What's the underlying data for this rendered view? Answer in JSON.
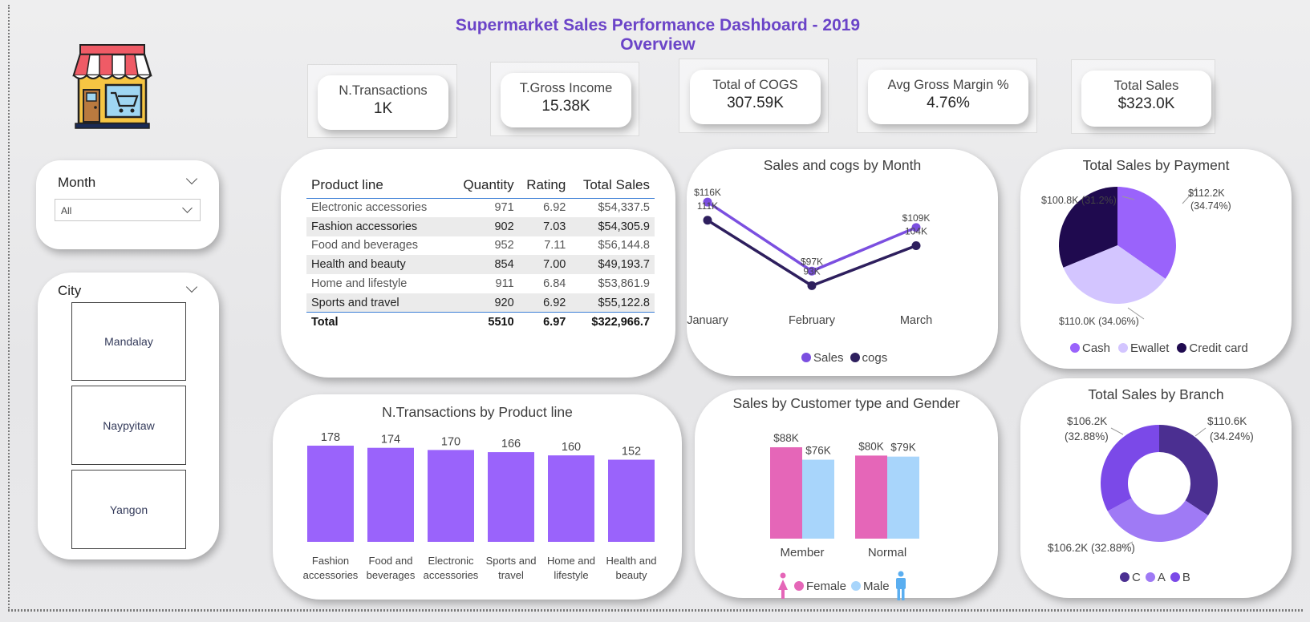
{
  "dashboard": {
    "title": "Supermarket Sales Performance Dashboard - 2019 Overview"
  },
  "logo": {
    "icon": "store-cart-icon"
  },
  "kpis": [
    {
      "label": "N.Transactions",
      "value": "1K"
    },
    {
      "label": "T.Gross Income",
      "value": "15.38K"
    },
    {
      "label": "Total of COGS",
      "value": "307.59K"
    },
    {
      "label": "Avg Gross Margin %",
      "value": "4.76%"
    },
    {
      "label": "Total Sales",
      "value": "$323.0K"
    }
  ],
  "month_slicer": {
    "label": "Month",
    "selected": "All"
  },
  "city_slicer": {
    "label": "City",
    "options": [
      "Mandalay",
      "Naypyitaw",
      "Yangon"
    ]
  },
  "product_table": {
    "headers": [
      "Product line",
      "Quantity",
      "Rating",
      "Total Sales"
    ],
    "rows": [
      [
        "Electronic accessories",
        "971",
        "6.92",
        "$54,337.5"
      ],
      [
        "Fashion accessories",
        "902",
        "7.03",
        "$54,305.9"
      ],
      [
        "Food and beverages",
        "952",
        "7.11",
        "$56,144.8"
      ],
      [
        "Health and beauty",
        "854",
        "7.00",
        "$49,193.7"
      ],
      [
        "Home and lifestyle",
        "911",
        "6.84",
        "$53,861.9"
      ],
      [
        "Sports and travel",
        "920",
        "6.92",
        "$55,122.8"
      ]
    ],
    "total": [
      "Total",
      "5510",
      "6.97",
      "$322,966.7"
    ]
  },
  "colors": {
    "purple": "#9a63fb",
    "purple_dark": "#7b4fe0",
    "navy": "#2e1f5e",
    "pink": "#e566b8",
    "lightblue": "#a8d5fb",
    "lavender": "#d3c5ff",
    "credit": "#1f0a4f",
    "title": "#6b44c8"
  },
  "chart_data": [
    {
      "id": "sales_cogs_month",
      "type": "line",
      "title": "Sales and cogs by Month",
      "categories": [
        "January",
        "February",
        "March"
      ],
      "series": [
        {
          "name": "Sales",
          "values": [
            116,
            97,
            109
          ],
          "labels": [
            "$116K",
            "$97K",
            "$109K"
          ],
          "color": "#7b4fe0"
        },
        {
          "name": "cogs",
          "values": [
            111,
            93,
            104
          ],
          "labels": [
            "111K",
            "93K",
            "104K"
          ],
          "color": "#2e1f5e"
        }
      ],
      "ylim": [
        90,
        118
      ]
    },
    {
      "id": "sales_by_payment",
      "type": "pie",
      "title": "Total Sales by Payment",
      "slices": [
        {
          "name": "Cash",
          "value": 112.2,
          "label": "$112.2K (34.74%)",
          "color": "#9a63fb"
        },
        {
          "name": "Ewallet",
          "value": 110.0,
          "label": "$110.0K (34.06%)",
          "color": "#d3c5ff"
        },
        {
          "name": "Credit card",
          "value": 100.8,
          "label": "$100.8K (31.2%)",
          "color": "#1f0a4f"
        }
      ]
    },
    {
      "id": "transactions_by_product",
      "type": "bar",
      "title": "N.Transactions by Product line",
      "categories": [
        "Fashion accessories",
        "Food and beverages",
        "Electronic accessories",
        "Sports and travel",
        "Home and lifestyle",
        "Health and beauty"
      ],
      "category_lines": [
        [
          "Fashion",
          "accessories"
        ],
        [
          "Food and",
          "beverages"
        ],
        [
          "Electronic",
          "accessories"
        ],
        [
          "Sports and",
          "travel"
        ],
        [
          "Home and",
          "lifestyle"
        ],
        [
          "Health and",
          "beauty"
        ]
      ],
      "values": [
        178,
        174,
        170,
        166,
        160,
        152
      ],
      "color": "#9a63fb"
    },
    {
      "id": "sales_customer_gender",
      "type": "bar",
      "title": "Sales by Customer type and Gender",
      "categories": [
        "Member",
        "Normal"
      ],
      "series": [
        {
          "name": "Female",
          "values": [
            88,
            80
          ],
          "labels": [
            "$88K",
            "$80K"
          ],
          "color": "#e566b8"
        },
        {
          "name": "Male",
          "values": [
            76,
            79
          ],
          "labels": [
            "$76K",
            "$79K"
          ],
          "color": "#a8d5fb"
        }
      ]
    },
    {
      "id": "sales_by_branch",
      "type": "pie",
      "title": "Total Sales by Branch",
      "slices": [
        {
          "name": "C",
          "value": 110.6,
          "label_lines": [
            "$110.6K",
            "(34.24%)"
          ],
          "color": "#4b2f91"
        },
        {
          "name": "A",
          "value": 106.2,
          "label_lines": [
            "$106.2K (32.88%)"
          ],
          "color": "#9f7af5"
        },
        {
          "name": "B",
          "value": 106.2,
          "label_lines": [
            "$106.2K",
            "(32.88%)"
          ],
          "color": "#7b49e8"
        }
      ]
    }
  ]
}
